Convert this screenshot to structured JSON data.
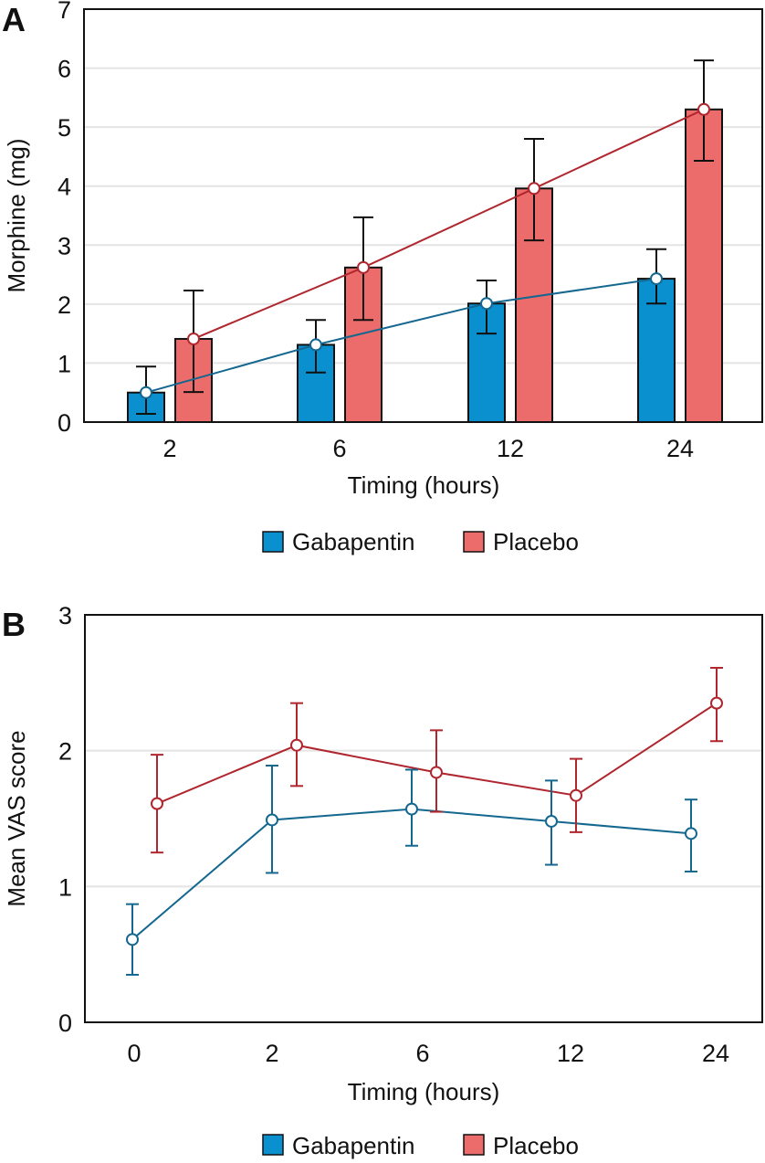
{
  "colors": {
    "gabapentin_bar": "#0a8fcf",
    "placebo_bar": "#ec6b6b",
    "gabapentin_line": "#14678f",
    "placebo_line": "#b0262e",
    "grid": "#e4e4e4",
    "axis": "#111111"
  },
  "chart_data": [
    {
      "panel_label": "A",
      "type": "bar",
      "title": "",
      "xlabel": "Timing (hours)",
      "ylabel": "Morphine (mg)",
      "categories": [
        "2",
        "6",
        "12",
        "24"
      ],
      "ylim": [
        0,
        7
      ],
      "yticks": [
        "0",
        "1",
        "2",
        "3",
        "4",
        "5",
        "6",
        "7"
      ],
      "grid": true,
      "legend_position": "bottom-center",
      "overlay_line": true,
      "series": [
        {
          "name": "Gabapentin",
          "values": [
            0.5,
            1.31,
            2.01,
            2.43
          ],
          "error_upper": [
            0.94,
            1.73,
            2.4,
            2.93
          ],
          "error_lower": [
            0.14,
            0.84,
            1.5,
            2.01
          ]
        },
        {
          "name": "Placebo",
          "values": [
            1.41,
            2.62,
            3.96,
            5.3
          ],
          "error_upper": [
            2.23,
            3.47,
            4.8,
            6.13
          ],
          "error_lower": [
            0.51,
            1.73,
            3.08,
            4.43
          ]
        }
      ]
    },
    {
      "panel_label": "B",
      "type": "line",
      "title": "",
      "xlabel": "Timing (hours)",
      "ylabel": "Mean VAS score",
      "categories": [
        "0",
        "2",
        "6",
        "12",
        "24"
      ],
      "ylim": [
        0,
        3
      ],
      "yticks": [
        "0",
        "1",
        "2",
        "3"
      ],
      "grid": true,
      "legend_position": "bottom-center",
      "series": [
        {
          "name": "Gabapentin",
          "values": [
            0.61,
            1.49,
            1.57,
            1.48,
            1.39
          ],
          "error_upper": [
            0.87,
            1.89,
            1.86,
            1.78,
            1.64
          ],
          "error_lower": [
            0.35,
            1.1,
            1.3,
            1.16,
            1.11
          ]
        },
        {
          "name": "Placebo",
          "values": [
            1.61,
            2.04,
            1.84,
            1.67,
            2.35
          ],
          "error_upper": [
            1.97,
            2.35,
            2.15,
            1.94,
            2.61
          ],
          "error_lower": [
            1.25,
            1.74,
            1.55,
            1.4,
            2.07
          ]
        }
      ]
    }
  ],
  "legend": {
    "items": [
      "Gabapentin",
      "Placebo"
    ]
  }
}
